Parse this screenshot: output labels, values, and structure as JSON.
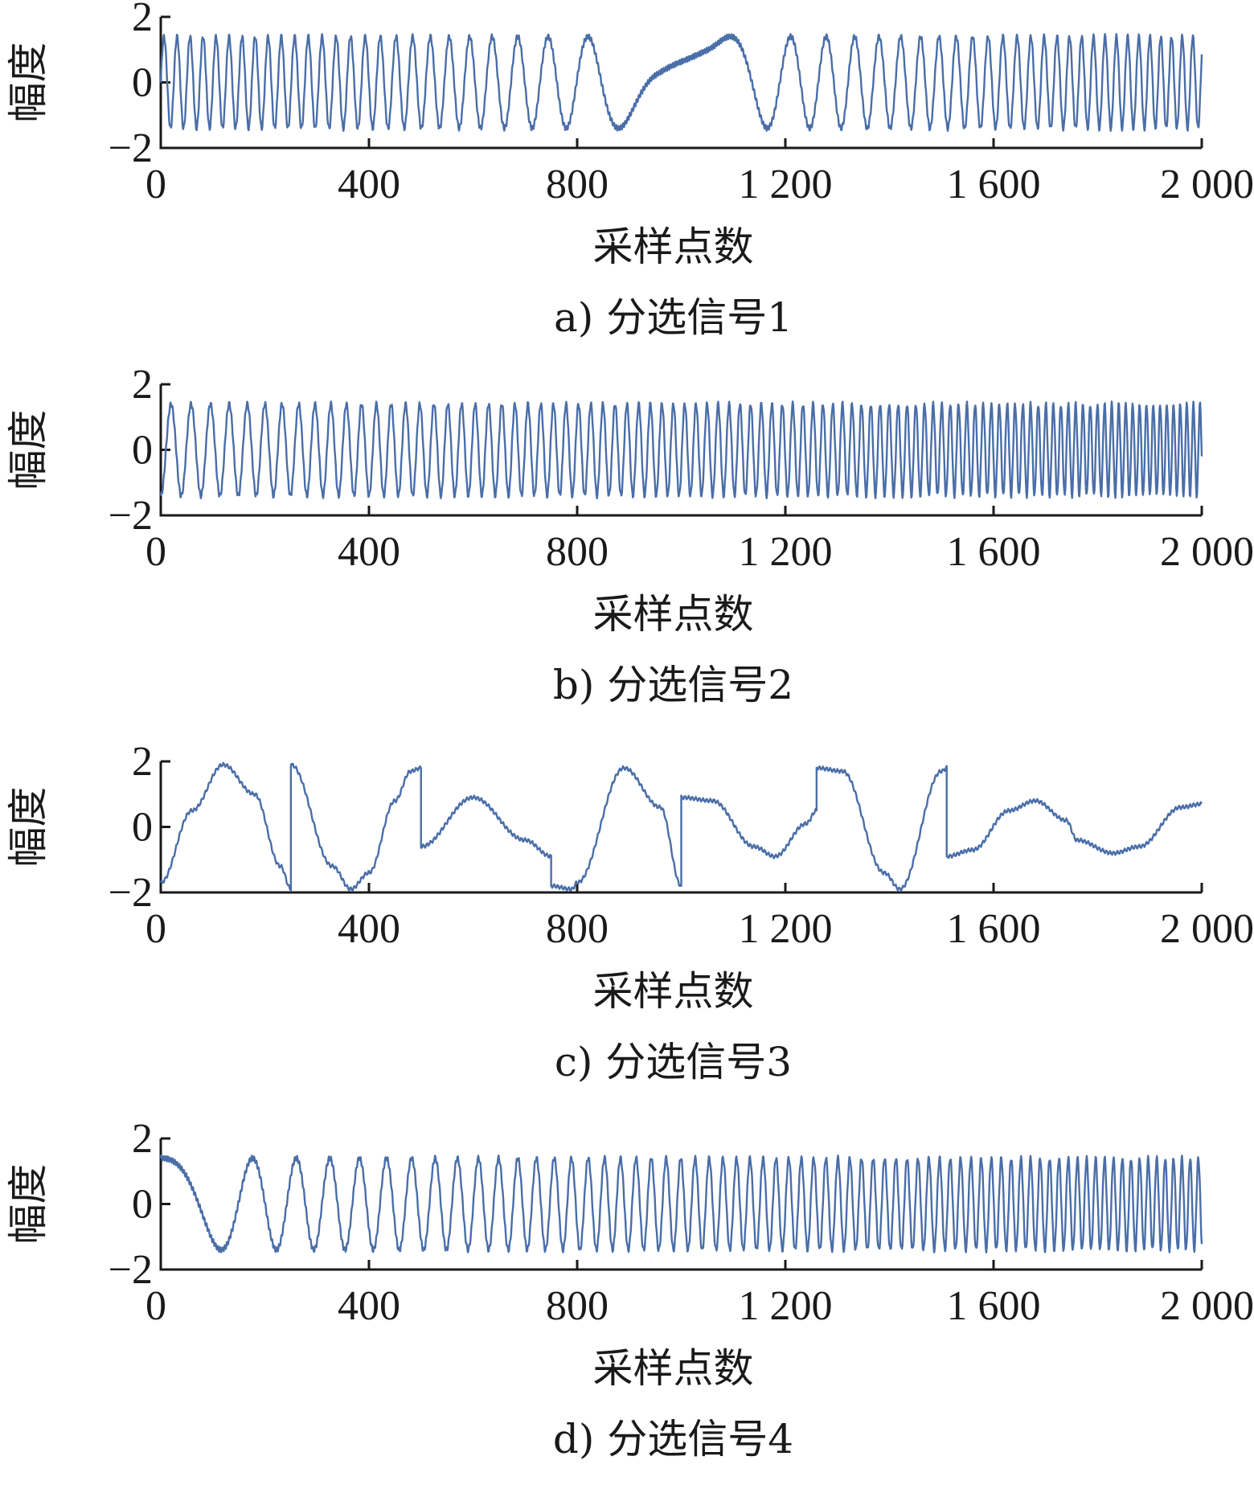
{
  "chart_data": [
    {
      "type": "line",
      "caption": "a) 分选信号1",
      "xlabel": "采样点数",
      "ylabel": "幅度",
      "xlim": [
        0,
        2000
      ],
      "ylim": [
        -2,
        2
      ],
      "xticks": [
        0,
        400,
        800,
        1200,
        1600,
        2000
      ],
      "xtick_labels": [
        "0",
        "400",
        "800",
        "1 200",
        "1 600",
        "2 000"
      ],
      "yticks": [
        -2,
        0,
        2
      ],
      "ytick_labels": [
        "−2",
        "0",
        "2"
      ],
      "color": "#4a6ea8",
      "signal": {
        "kind": "sine_sweep",
        "amplitude": 1.4,
        "knots_x": [
          0,
          200,
          400,
          600,
          800,
          900,
          950,
          1000,
          1050,
          1100,
          1200,
          1400,
          1600,
          1800,
          2000
        ],
        "knots_freq_cycles_per_sample": [
          0.04,
          0.04,
          0.035,
          0.024,
          0.012,
          0.005,
          0.0012,
          0.0008,
          0.0012,
          0.005,
          0.012,
          0.024,
          0.035,
          0.045,
          0.05
        ]
      }
    },
    {
      "type": "line",
      "caption": "b) 分选信号2",
      "xlabel": "采样点数",
      "ylabel": "幅度",
      "xlim": [
        0,
        2000
      ],
      "ylim": [
        -2,
        2
      ],
      "xticks": [
        0,
        400,
        800,
        1200,
        1600,
        2000
      ],
      "xtick_labels": [
        "0",
        "400",
        "800",
        "1 200",
        "1 600",
        "2 000"
      ],
      "yticks": [
        -2,
        0,
        2
      ],
      "ytick_labels": [
        "−2",
        "0",
        "2"
      ],
      "color": "#4a6ea8",
      "signal": {
        "kind": "sine_sweep",
        "amplitude": 1.4,
        "start_value": -1.6,
        "knots_x": [
          0,
          400,
          800,
          1200,
          1600,
          2000
        ],
        "knots_freq_cycles_per_sample": [
          0.025,
          0.035,
          0.042,
          0.05,
          0.065,
          0.08
        ]
      }
    },
    {
      "type": "line",
      "caption": "c) 分选信号3",
      "xlabel": "采样点数",
      "ylabel": "幅度",
      "xlim": [
        0,
        2000
      ],
      "ylim": [
        -2,
        2
      ],
      "xticks": [
        0,
        400,
        800,
        1200,
        1600,
        2000
      ],
      "xtick_labels": [
        "0",
        "400",
        "800",
        "1 200",
        "1 600",
        "2 000"
      ],
      "yticks": [
        -2,
        0,
        2
      ],
      "ytick_labels": [
        "−2",
        "0",
        "2"
      ],
      "color": "#4a6ea8",
      "signal": {
        "kind": "polyline",
        "ripple": 0.06,
        "x": [
          0,
          60,
          120,
          180,
          230,
          250,
          250,
          330,
          365,
          400,
          450,
          480,
          500,
          500,
          600,
          700,
          750,
          750,
          790,
          800,
          890,
          960,
          1000,
          1000,
          1060,
          1140,
          1180,
          1240,
          1260,
          1260,
          1310,
          1390,
          1420,
          1500,
          1510,
          1510,
          1560,
          1630,
          1680,
          1740,
          1760,
          1760,
          1830,
          1880,
          1960,
          2000
        ],
        "y": [
          -1.7,
          0.5,
          1.9,
          1.0,
          -1.2,
          -1.9,
          1.9,
          -1.2,
          -1.9,
          -1.4,
          0.8,
          1.7,
          1.8,
          -0.6,
          0.9,
          -0.4,
          -0.9,
          -1.8,
          -1.9,
          -1.7,
          1.8,
          0.6,
          -1.8,
          0.9,
          0.8,
          -0.6,
          -0.9,
          0.1,
          0.5,
          1.8,
          1.7,
          -1.4,
          -1.9,
          1.7,
          1.8,
          -0.9,
          -0.7,
          0.5,
          0.8,
          0.2,
          -0.4,
          -0.4,
          -0.8,
          -0.6,
          0.6,
          0.7
        ]
      }
    },
    {
      "type": "line",
      "caption": "d) 分选信号4",
      "xlabel": "采样点数",
      "ylabel": "幅度",
      "xlim": [
        0,
        2000
      ],
      "ylim": [
        -2,
        2
      ],
      "xticks": [
        0,
        400,
        800,
        1200,
        1600,
        2000
      ],
      "xtick_labels": [
        "0",
        "400",
        "800",
        "1 200",
        "1 600",
        "2 000"
      ],
      "yticks": [
        -2,
        0,
        2
      ],
      "ytick_labels": [
        "−2",
        "0",
        "2"
      ],
      "color": "#4a6ea8",
      "signal": {
        "kind": "sine_sweep",
        "amplitude": 1.4,
        "start_phase_cos": true,
        "knots_x": [
          0,
          100,
          200,
          300,
          400,
          600,
          800,
          1000,
          1200,
          1400,
          1600,
          1800,
          2000
        ],
        "knots_freq_cycles_per_sample": [
          0.002,
          0.006,
          0.011,
          0.016,
          0.019,
          0.025,
          0.031,
          0.036,
          0.041,
          0.046,
          0.052,
          0.058,
          0.064
        ]
      }
    }
  ]
}
